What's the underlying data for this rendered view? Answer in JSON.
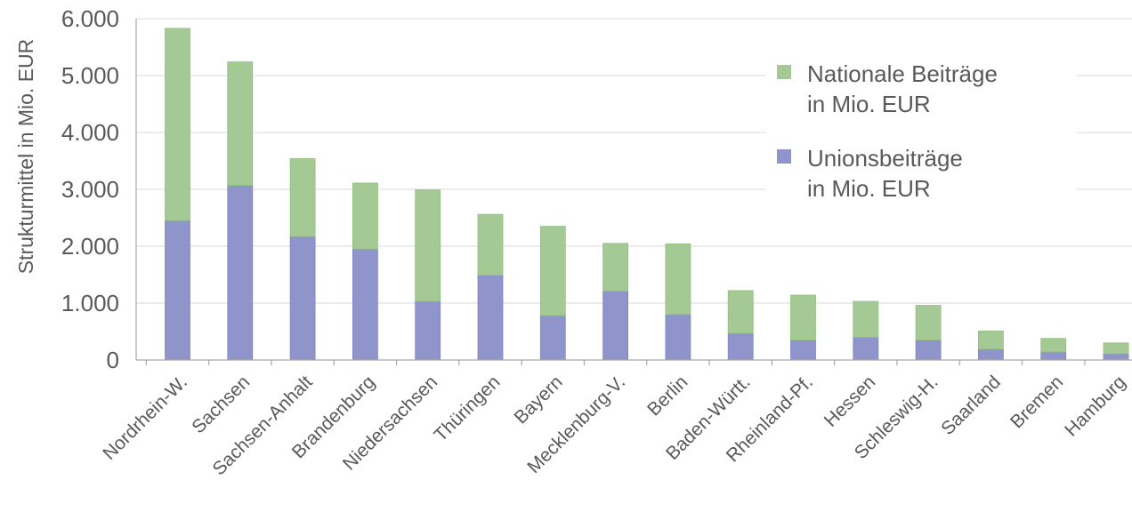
{
  "chart_data": {
    "type": "bar",
    "stacked": true,
    "ylabel": "Strukturmittel in Mio. EUR",
    "ylim": [
      0,
      6000
    ],
    "y_ticks": [
      "0",
      "1.000",
      "2.000",
      "3.000",
      "4.000",
      "5.000",
      "6.000"
    ],
    "y_tick_values": [
      0,
      1000,
      2000,
      3000,
      4000,
      5000,
      6000
    ],
    "grid": true,
    "legend_position": "top-right",
    "categories": [
      "Nordrhein-W.",
      "Sachsen",
      "Sachsen-Anhalt",
      "Brandenburg",
      "Niedersachsen",
      "Thüringen",
      "Bayern",
      "Mecklenburg-V.",
      "Berlin",
      "Baden-Württ.",
      "Rheinland-Pf.",
      "Hessen",
      "Schleswig-H.",
      "Saarland",
      "Bremen",
      "Hamburg"
    ],
    "series": [
      {
        "name": "Unionsbeiträge in Mio. EUR",
        "legend_lines": [
          "Unionsbeiträge",
          "in Mio. EUR"
        ],
        "color": "#8f95cb",
        "values": [
          2450,
          3070,
          2170,
          1950,
          1030,
          1490,
          780,
          1210,
          800,
          470,
          350,
          400,
          350,
          190,
          140,
          110
        ]
      },
      {
        "name": "Nationale Beiträge in Mio. EUR",
        "legend_lines": [
          "Nationale Beiträge",
          "in Mio. EUR"
        ],
        "color": "#a4c995",
        "values": [
          3380,
          2170,
          1370,
          1160,
          1960,
          1070,
          1570,
          840,
          1240,
          750,
          790,
          630,
          610,
          320,
          240,
          190
        ]
      }
    ]
  }
}
